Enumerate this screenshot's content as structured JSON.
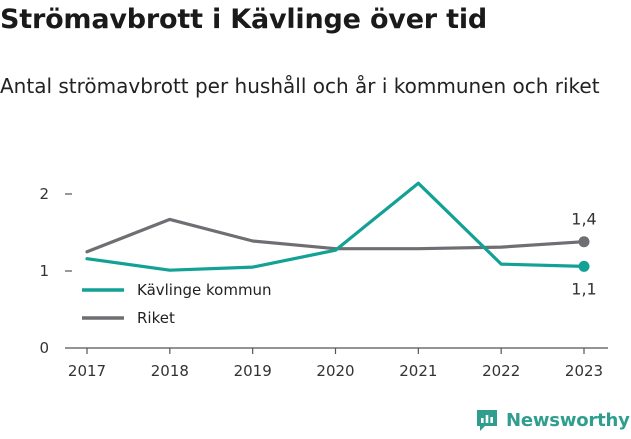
{
  "title": "Strömavbrott i Kävlinge över tid",
  "subtitle": "Antal strömavbrott per hushåll och år i kommunen och riket",
  "brand": "Newsworthy",
  "chart_data": {
    "type": "line",
    "x": [
      "2017",
      "2018",
      "2019",
      "2020",
      "2021",
      "2022",
      "2023"
    ],
    "ylim": [
      0,
      2.3
    ],
    "yticks": [
      0,
      1,
      2
    ],
    "grid": false,
    "legend_placement": "bottom-left",
    "series": [
      {
        "name": "Kävlinge kommun",
        "color": "#12a195",
        "values": [
          1.16,
          1.01,
          1.05,
          1.27,
          2.14,
          1.09,
          1.06
        ],
        "end_label": "1,1"
      },
      {
        "name": "Riket",
        "color": "#6f6e72",
        "values": [
          1.25,
          1.67,
          1.39,
          1.29,
          1.29,
          1.31,
          1.38
        ],
        "end_label": "1,4"
      }
    ]
  }
}
